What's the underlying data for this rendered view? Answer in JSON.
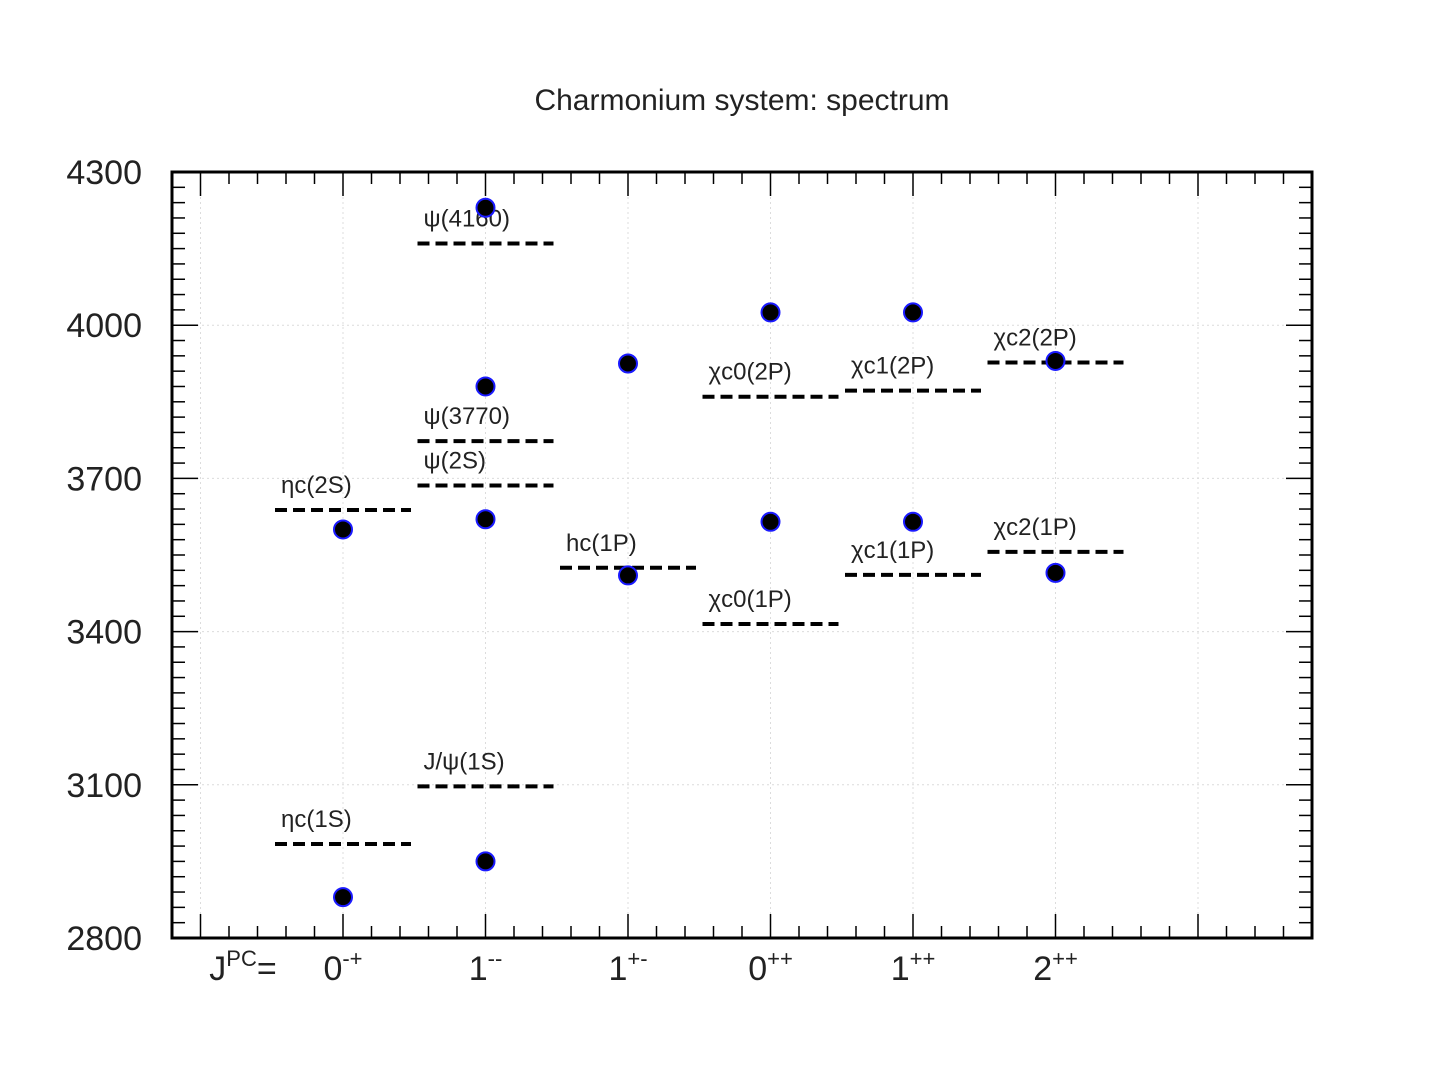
{
  "chart_data": {
    "type": "scatter",
    "title": "Charmonium system: spectrum",
    "xlabel": "",
    "ylabel": "",
    "ylim": [
      2800,
      4300
    ],
    "yticks": [
      "2800",
      "3100",
      "3400",
      "3700",
      "4000",
      "4300"
    ],
    "jpc_prefix": {
      "base": "J",
      "sup": "PC",
      "eq": "="
    },
    "categories": [
      {
        "base": "0",
        "sup": "-+"
      },
      {
        "base": "1",
        "sup": "--"
      },
      {
        "base": "1",
        "sup": "+-"
      },
      {
        "base": "0",
        "sup": "++"
      },
      {
        "base": "1",
        "sup": "++"
      },
      {
        "base": "2",
        "sup": "++"
      }
    ],
    "grid": true,
    "levels": [
      {
        "label": "ηc(1S)",
        "category": 0,
        "mass": 2984
      },
      {
        "label": "ηc(2S)",
        "category": 0,
        "mass": 3638
      },
      {
        "label": "J/ψ(1S)",
        "category": 1,
        "mass": 3097
      },
      {
        "label": "ψ(2S)",
        "category": 1,
        "mass": 3686
      },
      {
        "label": "ψ(3770)",
        "category": 1,
        "mass": 3773
      },
      {
        "label": "ψ(4160)",
        "category": 1,
        "mass": 4160
      },
      {
        "label": "hc(1P)",
        "category": 2,
        "mass": 3525
      },
      {
        "label": "χc0(1P)",
        "category": 3,
        "mass": 3415
      },
      {
        "label": "χc0(2P)",
        "category": 3,
        "mass": 3860
      },
      {
        "label": "χc1(1P)",
        "category": 4,
        "mass": 3511
      },
      {
        "label": "χc1(2P)",
        "category": 4,
        "mass": 3872
      },
      {
        "label": "χc2(1P)",
        "category": 5,
        "mass": 3556
      },
      {
        "label": "χc2(2P)",
        "category": 5,
        "mass": 3927
      }
    ],
    "points": [
      {
        "category": 0,
        "mass": 2880
      },
      {
        "category": 0,
        "mass": 3600
      },
      {
        "category": 1,
        "mass": 2950
      },
      {
        "category": 1,
        "mass": 3620
      },
      {
        "category": 1,
        "mass": 3880
      },
      {
        "category": 1,
        "mass": 4230
      },
      {
        "category": 2,
        "mass": 3510
      },
      {
        "category": 2,
        "mass": 3925
      },
      {
        "category": 3,
        "mass": 3615
      },
      {
        "category": 3,
        "mass": 4025
      },
      {
        "category": 4,
        "mass": 3615
      },
      {
        "category": 4,
        "mass": 4025
      },
      {
        "category": 5,
        "mass": 3515
      },
      {
        "category": 5,
        "mass": 3930
      }
    ],
    "colors": {
      "marker_fill": "#000000",
      "marker_edge": "#1a1aff",
      "level": "#000000",
      "grid": "#dcdcdc",
      "axis": "#000000"
    }
  }
}
